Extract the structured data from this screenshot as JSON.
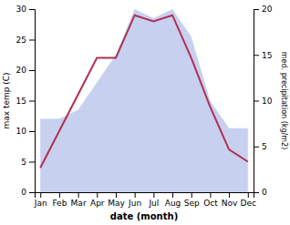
{
  "chart_data": {
    "type": "line",
    "categories": [
      "Jan",
      "Feb",
      "Mar",
      "Apr",
      "May",
      "Jun",
      "Jul",
      "Aug",
      "Sep",
      "Oct",
      "Nov",
      "Dec"
    ],
    "xlabel": "date (month)",
    "ylabel": "max temp (C)",
    "y2label": "med. precipitation (kg/m2)",
    "series": [
      {
        "type": "area",
        "axis": "y2",
        "color": "#c8d0f0",
        "values": [
          8,
          8,
          9,
          12,
          15,
          20,
          19,
          20,
          17,
          10,
          7,
          7
        ]
      },
      {
        "type": "line",
        "color": "#b03050",
        "values": [
          4,
          10,
          16,
          22,
          22,
          29,
          28,
          29,
          22,
          14,
          7,
          5
        ]
      }
    ],
    "ylim": [
      0,
      30
    ],
    "yticks": [
      0,
      5,
      10,
      15,
      20,
      25,
      30
    ],
    "y2lim": [
      0,
      20
    ],
    "y2ticks": [
      0,
      5,
      10,
      15,
      20
    ],
    "grid": false
  }
}
